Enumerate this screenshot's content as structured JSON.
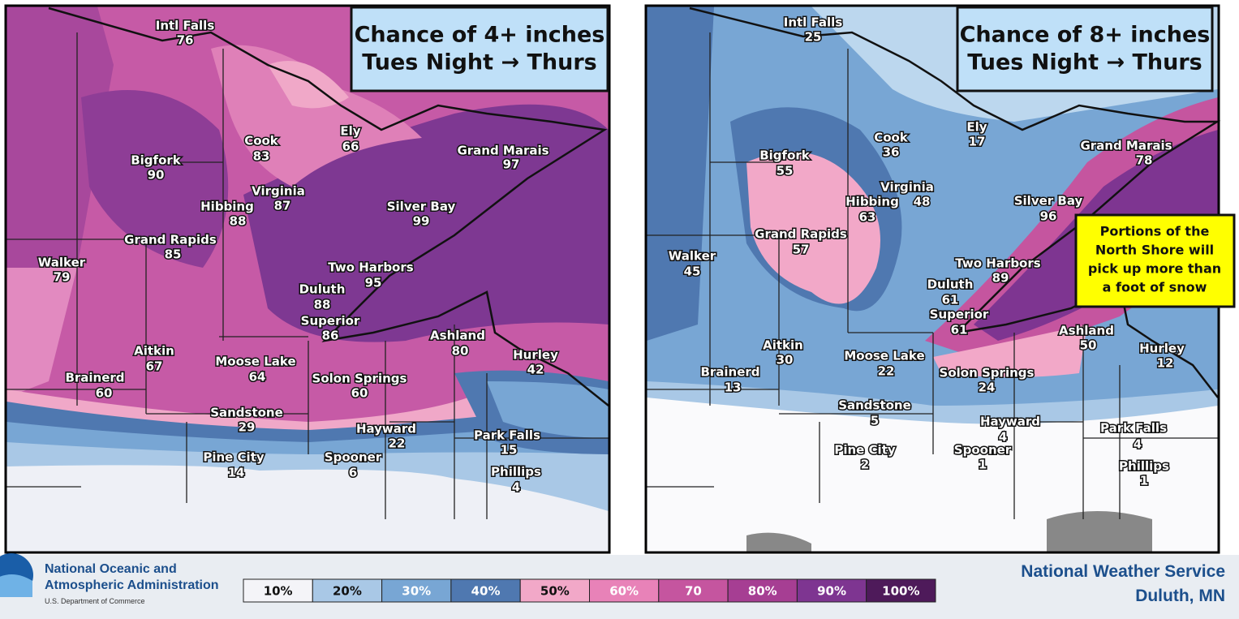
{
  "panels": [
    {
      "title_lines": [
        "Chance of 4+ inches",
        "Tues Night → Thurs"
      ],
      "cities": [
        {
          "name": "Intl Falls",
          "value": 76
        },
        {
          "name": "Cook",
          "value": 83
        },
        {
          "name": "Ely",
          "value": 66
        },
        {
          "name": "Bigfork",
          "value": 90
        },
        {
          "name": "Grand Marais",
          "value": 97
        },
        {
          "name": "Virginia",
          "value": 87
        },
        {
          "name": "Hibbing",
          "value": 88
        },
        {
          "name": "Silver Bay",
          "value": 99
        },
        {
          "name": "Grand Rapids",
          "value": 85
        },
        {
          "name": "Walker",
          "value": 79
        },
        {
          "name": "Two Harbors",
          "value": 95
        },
        {
          "name": "Duluth",
          "value": 88
        },
        {
          "name": "Superior",
          "value": 86
        },
        {
          "name": "Ashland",
          "value": 80
        },
        {
          "name": "Aitkin",
          "value": 67
        },
        {
          "name": "Moose Lake",
          "value": 64
        },
        {
          "name": "Hurley",
          "value": 42
        },
        {
          "name": "Brainerd",
          "value": 60
        },
        {
          "name": "Solon Springs",
          "value": 60
        },
        {
          "name": "Sandstone",
          "value": 29
        },
        {
          "name": "Hayward",
          "value": 22
        },
        {
          "name": "Park Falls",
          "value": 15
        },
        {
          "name": "Pine City",
          "value": 14
        },
        {
          "name": "Spooner",
          "value": 6
        },
        {
          "name": "Phillips",
          "value": 4
        }
      ]
    },
    {
      "title_lines": [
        "Chance of 8+ inches",
        "Tues Night → Thurs"
      ],
      "cities": [
        {
          "name": "Intl Falls",
          "value": 25
        },
        {
          "name": "Cook",
          "value": 36
        },
        {
          "name": "Ely",
          "value": 17
        },
        {
          "name": "Bigfork",
          "value": 55
        },
        {
          "name": "Grand Marais",
          "value": 78
        },
        {
          "name": "Virginia",
          "value": 48
        },
        {
          "name": "Hibbing",
          "value": 63
        },
        {
          "name": "Silver Bay",
          "value": 96
        },
        {
          "name": "Grand Rapids",
          "value": 57
        },
        {
          "name": "Walker",
          "value": 45
        },
        {
          "name": "Two Harbors",
          "value": 89
        },
        {
          "name": "Duluth",
          "value": 61
        },
        {
          "name": "Superior",
          "value": 61
        },
        {
          "name": "Ashland",
          "value": 50
        },
        {
          "name": "Aitkin",
          "value": 30
        },
        {
          "name": "Moose Lake",
          "value": 22
        },
        {
          "name": "Hurley",
          "value": 12
        },
        {
          "name": "Brainerd",
          "value": 13
        },
        {
          "name": "Solon Springs",
          "value": 24
        },
        {
          "name": "Sandstone",
          "value": 5
        },
        {
          "name": "Hayward",
          "value": 4
        },
        {
          "name": "Park Falls",
          "value": 4
        },
        {
          "name": "Pine City",
          "value": 2
        },
        {
          "name": "Spooner",
          "value": 1
        },
        {
          "name": "Phillips",
          "value": 1
        }
      ],
      "callout_lines": [
        "Portions of the",
        "North Shore will",
        "pick up more than",
        "a foot of snow"
      ]
    }
  ],
  "legend": [
    "10%",
    "20%",
    "30%",
    "40%",
    "50%",
    "60%",
    "70",
    "80%",
    "90%",
    "100%"
  ],
  "footer": {
    "agency_lines": [
      "National Oceanic and",
      "Atmospheric Administration"
    ],
    "department": "U.S. Department of Commerce",
    "office_lines": [
      "National Weather Service",
      "Duluth, MN"
    ]
  }
}
